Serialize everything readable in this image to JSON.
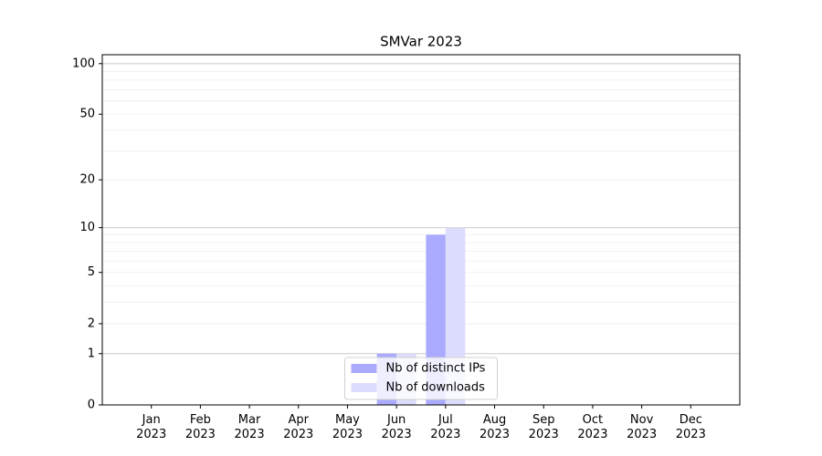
{
  "chart_data": {
    "type": "bar",
    "title": "SMVar 2023",
    "categories": [
      "Jan\n2023",
      "Feb\n2023",
      "Mar\n2023",
      "Apr\n2023",
      "May\n2023",
      "Jun\n2023",
      "Jul\n2023",
      "Aug\n2023",
      "Sep\n2023",
      "Oct\n2023",
      "Nov\n2023",
      "Dec\n2023"
    ],
    "series": [
      {
        "name": "Nb of distinct IPs",
        "color": "#aaaaff",
        "values": [
          0,
          0,
          0,
          0,
          0,
          1,
          9,
          0,
          0,
          0,
          0,
          0
        ]
      },
      {
        "name": "Nb of downloads",
        "color": "#dcdcfc",
        "values": [
          0,
          0,
          0,
          0,
          0,
          1,
          10,
          0,
          0,
          0,
          0,
          0
        ]
      }
    ],
    "yscale": "log1p",
    "ylim": [
      0,
      113
    ],
    "yticks": [
      0,
      1,
      2,
      5,
      10,
      20,
      50,
      100
    ],
    "major_grid": [
      1,
      10,
      100
    ],
    "minor_grid": [
      2,
      3,
      4,
      5,
      6,
      7,
      8,
      9,
      20,
      30,
      40,
      50,
      60,
      70,
      80,
      90
    ],
    "grid": true,
    "legend": "lower center"
  }
}
